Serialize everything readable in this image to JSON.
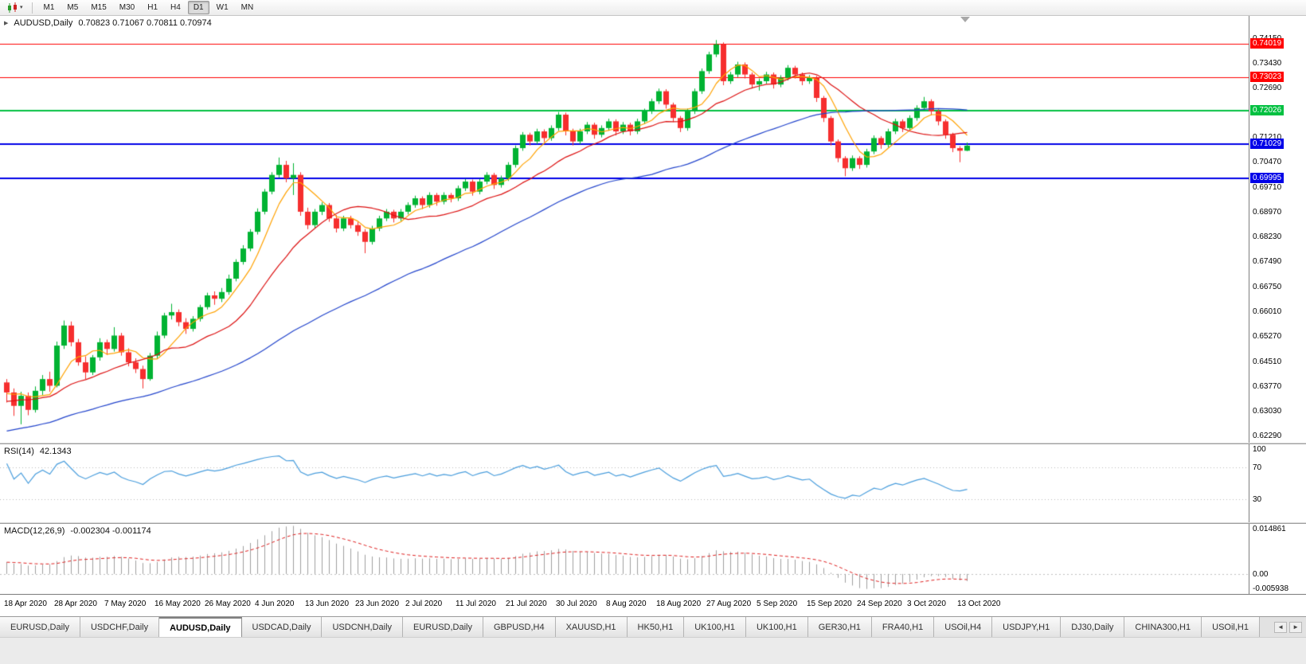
{
  "toolbar": {
    "timeframes": [
      "M1",
      "M5",
      "M15",
      "M30",
      "H1",
      "H4",
      "D1",
      "W1",
      "MN"
    ],
    "active_timeframe": "D1",
    "chart_type_icon": "candlestick-chart",
    "dropdown_caret": "▾"
  },
  "chart_data": {
    "type": "candlestick",
    "symbol_period": "AUDUSD,Daily",
    "ohlc_text": "0.70823 0.71067 0.70811 0.70974",
    "current_bar": {
      "open": 0.70823,
      "high": 0.71067,
      "low": 0.70811,
      "close": 0.70974
    },
    "price_range": {
      "top": 0.7485,
      "bottom": 0.621
    },
    "price_axis_labels": [
      "0.74150",
      "0.73430",
      "0.72690",
      "0.71210",
      "0.70470",
      "0.69710",
      "0.68970",
      "0.68230",
      "0.67490",
      "0.66750",
      "0.66010",
      "0.65270",
      "0.64510",
      "0.63770",
      "0.63030",
      "0.62290"
    ],
    "levels": [
      {
        "label": "0.74019",
        "value": 0.74019,
        "color": "#ff0000",
        "thickness": 1
      },
      {
        "label": "0.73023",
        "value": 0.73023,
        "color": "#ff0000",
        "thickness": 1
      },
      {
        "label": "0.72026",
        "value": 0.72026,
        "color": "#00c040",
        "thickness": 2
      },
      {
        "label": "0.71029",
        "value": 0.71029,
        "color": "#0000e8",
        "thickness": 2
      },
      {
        "label": "0.69995",
        "value": 0.69995,
        "color": "#0000e8",
        "thickness": 2
      }
    ],
    "date_labels": [
      "18 Apr 2020",
      "28 Apr 2020",
      "7 May 2020",
      "16 May 2020",
      "26 May 2020",
      "4 Jun 2020",
      "13 Jun 2020",
      "23 Jun 2020",
      "2 Jul 2020",
      "11 Jul 2020",
      "21 Jul 2020",
      "30 Jul 2020",
      "8 Aug 2020",
      "18 Aug 2020",
      "27 Aug 2020",
      "5 Sep 2020",
      "15 Sep 2020",
      "24 Sep 2020",
      "3 Oct 2020",
      "13 Oct 2020"
    ],
    "bars_per_date_label": 7,
    "candles_pips": [
      [
        6390,
        6400,
        6330,
        6360
      ],
      [
        6360,
        6372,
        6290,
        6320
      ],
      [
        6320,
        6362,
        6265,
        6350
      ],
      [
        6350,
        6360,
        6292,
        6308
      ],
      [
        6308,
        6378,
        6300,
        6365
      ],
      [
        6365,
        6412,
        6352,
        6400
      ],
      [
        6400,
        6422,
        6362,
        6380
      ],
      [
        6380,
        6512,
        6375,
        6500
      ],
      [
        6500,
        6575,
        6490,
        6560
      ],
      [
        6560,
        6572,
        6498,
        6510
      ],
      [
        6510,
        6520,
        6440,
        6450
      ],
      [
        6450,
        6468,
        6400,
        6420
      ],
      [
        6420,
        6472,
        6412,
        6465
      ],
      [
        6465,
        6522,
        6455,
        6510
      ],
      [
        6510,
        6518,
        6472,
        6490
      ],
      [
        6490,
        6555,
        6482,
        6530
      ],
      [
        6530,
        6538,
        6470,
        6480
      ],
      [
        6480,
        6492,
        6438,
        6450
      ],
      [
        6450,
        6462,
        6418,
        6430
      ],
      [
        6430,
        6440,
        6372,
        6400
      ],
      [
        6400,
        6478,
        6395,
        6470
      ],
      [
        6470,
        6542,
        6462,
        6530
      ],
      [
        6530,
        6598,
        6522,
        6590
      ],
      [
        6590,
        6625,
        6578,
        6600
      ],
      [
        6600,
        6608,
        6558,
        6570
      ],
      [
        6570,
        6582,
        6535,
        6550
      ],
      [
        6550,
        6588,
        6542,
        6580
      ],
      [
        6580,
        6622,
        6572,
        6615
      ],
      [
        6615,
        6658,
        6608,
        6650
      ],
      [
        6650,
        6662,
        6622,
        6640
      ],
      [
        6640,
        6672,
        6630,
        6660
      ],
      [
        6660,
        6712,
        6652,
        6700
      ],
      [
        6700,
        6758,
        6692,
        6750
      ],
      [
        6750,
        6800,
        6742,
        6790
      ],
      [
        6790,
        6848,
        6782,
        6840
      ],
      [
        6840,
        6910,
        6832,
        6900
      ],
      [
        6900,
        6968,
        6892,
        6960
      ],
      [
        6960,
        7018,
        6952,
        7010
      ],
      [
        7010,
        7062,
        7002,
        7040
      ],
      [
        7040,
        7052,
        6988,
        7000
      ],
      [
        7000,
        7045,
        6950,
        7010
      ],
      [
        7010,
        7018,
        6888,
        6900
      ],
      [
        6900,
        6912,
        6848,
        6860
      ],
      [
        6860,
        6908,
        6852,
        6900
      ],
      [
        6900,
        6928,
        6890,
        6920
      ],
      [
        6920,
        6926,
        6870,
        6880
      ],
      [
        6880,
        6890,
        6838,
        6850
      ],
      [
        6850,
        6888,
        6842,
        6880
      ],
      [
        6880,
        6888,
        6850,
        6860
      ],
      [
        6860,
        6870,
        6828,
        6840
      ],
      [
        6840,
        6848,
        6776,
        6810
      ],
      [
        6810,
        6858,
        6802,
        6850
      ],
      [
        6850,
        6888,
        6842,
        6880
      ],
      [
        6880,
        6908,
        6872,
        6900
      ],
      [
        6900,
        6906,
        6868,
        6880
      ],
      [
        6880,
        6908,
        6872,
        6900
      ],
      [
        6900,
        6928,
        6892,
        6920
      ],
      [
        6920,
        6948,
        6912,
        6940
      ],
      [
        6940,
        6946,
        6908,
        6920
      ],
      [
        6920,
        6958,
        6912,
        6950
      ],
      [
        6950,
        6956,
        6918,
        6930
      ],
      [
        6930,
        6958,
        6922,
        6950
      ],
      [
        6950,
        6956,
        6928,
        6940
      ],
      [
        6940,
        6978,
        6932,
        6970
      ],
      [
        6970,
        6998,
        6962,
        6990
      ],
      [
        6990,
        6996,
        6948,
        6960
      ],
      [
        6960,
        6998,
        6952,
        6990
      ],
      [
        6990,
        7018,
        6982,
        7010
      ],
      [
        7010,
        7016,
        6968,
        6980
      ],
      [
        6980,
        7008,
        6972,
        7000
      ],
      [
        7000,
        7048,
        6992,
        7040
      ],
      [
        7040,
        7098,
        7032,
        7090
      ],
      [
        7090,
        7138,
        7082,
        7130
      ],
      [
        7130,
        7136,
        7098,
        7110
      ],
      [
        7110,
        7148,
        7102,
        7140
      ],
      [
        7140,
        7146,
        7108,
        7120
      ],
      [
        7120,
        7158,
        7112,
        7150
      ],
      [
        7150,
        7198,
        7142,
        7190
      ],
      [
        7190,
        7196,
        7128,
        7140
      ],
      [
        7140,
        7148,
        7098,
        7110
      ],
      [
        7110,
        7148,
        7102,
        7140
      ],
      [
        7140,
        7168,
        7132,
        7160
      ],
      [
        7160,
        7166,
        7118,
        7130
      ],
      [
        7130,
        7158,
        7122,
        7150
      ],
      [
        7150,
        7178,
        7142,
        7170
      ],
      [
        7170,
        7176,
        7128,
        7140
      ],
      [
        7140,
        7168,
        7132,
        7160
      ],
      [
        7160,
        7166,
        7128,
        7140
      ],
      [
        7140,
        7178,
        7132,
        7170
      ],
      [
        7170,
        7208,
        7162,
        7200
      ],
      [
        7200,
        7238,
        7192,
        7230
      ],
      [
        7230,
        7268,
        7222,
        7260
      ],
      [
        7260,
        7266,
        7208,
        7220
      ],
      [
        7220,
        7226,
        7168,
        7180
      ],
      [
        7180,
        7186,
        7138,
        7150
      ],
      [
        7150,
        7208,
        7142,
        7200
      ],
      [
        7200,
        7268,
        7192,
        7260
      ],
      [
        7260,
        7328,
        7252,
        7320
      ],
      [
        7320,
        7378,
        7312,
        7370
      ],
      [
        7370,
        7413,
        7362,
        7400
      ],
      [
        7400,
        7406,
        7278,
        7290
      ],
      [
        7290,
        7318,
        7282,
        7310
      ],
      [
        7310,
        7348,
        7302,
        7340
      ],
      [
        7340,
        7346,
        7298,
        7310
      ],
      [
        7310,
        7316,
        7268,
        7280
      ],
      [
        7280,
        7298,
        7262,
        7290
      ],
      [
        7290,
        7318,
        7282,
        7310
      ],
      [
        7310,
        7316,
        7268,
        7280
      ],
      [
        7280,
        7308,
        7272,
        7300
      ],
      [
        7300,
        7338,
        7292,
        7330
      ],
      [
        7330,
        7336,
        7298,
        7310
      ],
      [
        7310,
        7316,
        7278,
        7290
      ],
      [
        7290,
        7308,
        7282,
        7300
      ],
      [
        7300,
        7306,
        7228,
        7240
      ],
      [
        7240,
        7246,
        7168,
        7180
      ],
      [
        7180,
        7186,
        7098,
        7110
      ],
      [
        7110,
        7116,
        7048,
        7060
      ],
      [
        7060,
        7066,
        7006,
        7030
      ],
      [
        7030,
        7068,
        7022,
        7060
      ],
      [
        7060,
        7066,
        7028,
        7040
      ],
      [
        7040,
        7088,
        7032,
        7080
      ],
      [
        7080,
        7128,
        7072,
        7120
      ],
      [
        7120,
        7126,
        7088,
        7100
      ],
      [
        7100,
        7148,
        7092,
        7140
      ],
      [
        7140,
        7178,
        7132,
        7170
      ],
      [
        7170,
        7176,
        7138,
        7150
      ],
      [
        7150,
        7188,
        7142,
        7180
      ],
      [
        7180,
        7218,
        7172,
        7210
      ],
      [
        7210,
        7243,
        7202,
        7230
      ],
      [
        7230,
        7236,
        7188,
        7200
      ],
      [
        7200,
        7206,
        7158,
        7170
      ],
      [
        7170,
        7176,
        7118,
        7130
      ],
      [
        7130,
        7136,
        7078,
        7090
      ],
      [
        7090,
        7096,
        7048,
        7082.3
      ],
      [
        7082.3,
        7106.7,
        7081.1,
        7097.4
      ]
    ],
    "colors": {
      "up": "#00b332",
      "down": "#f62e2e",
      "background": "#ffffff"
    },
    "moving_averages": [
      {
        "period": 6,
        "color": "#ffa200"
      },
      {
        "period": 16,
        "color": "#dd1111"
      },
      {
        "period": 50,
        "color": "#2244cc"
      }
    ],
    "rsi": {
      "label": "RSI(14)",
      "value": "42.1343",
      "color": "#4a9edd",
      "levels": [
        70,
        30
      ],
      "axis_labels": [
        "100",
        "70",
        "30"
      ],
      "range": [
        0,
        100
      ]
    },
    "macd": {
      "label": "MACD(12,26,9)",
      "values": "-0.002304 -0.001174",
      "axis_labels": [
        "0.014861",
        "0.00",
        "-0.005938"
      ],
      "axis_max": 0.014861,
      "axis_min": -0.005938,
      "histogram_color": "#a0a0a0",
      "signal_color": "#e02020"
    }
  },
  "tabs": {
    "items": [
      "EURUSD,Daily",
      "USDCHF,Daily",
      "AUDUSD,Daily",
      "USDCAD,Daily",
      "USDCNH,Daily",
      "EURUSD,Daily",
      "GBPUSD,H4",
      "XAUUSD,H1",
      "HK50,H1",
      "UK100,H1",
      "UK100,H1",
      "GER30,H1",
      "FRA40,H1",
      "USOil,H4",
      "USDJPY,H1",
      "DJ30,Daily",
      "CHINA300,H1",
      "USOil,H1"
    ],
    "active_index": 2,
    "scroll_left_icon": "◄",
    "scroll_right_icon": "►"
  }
}
